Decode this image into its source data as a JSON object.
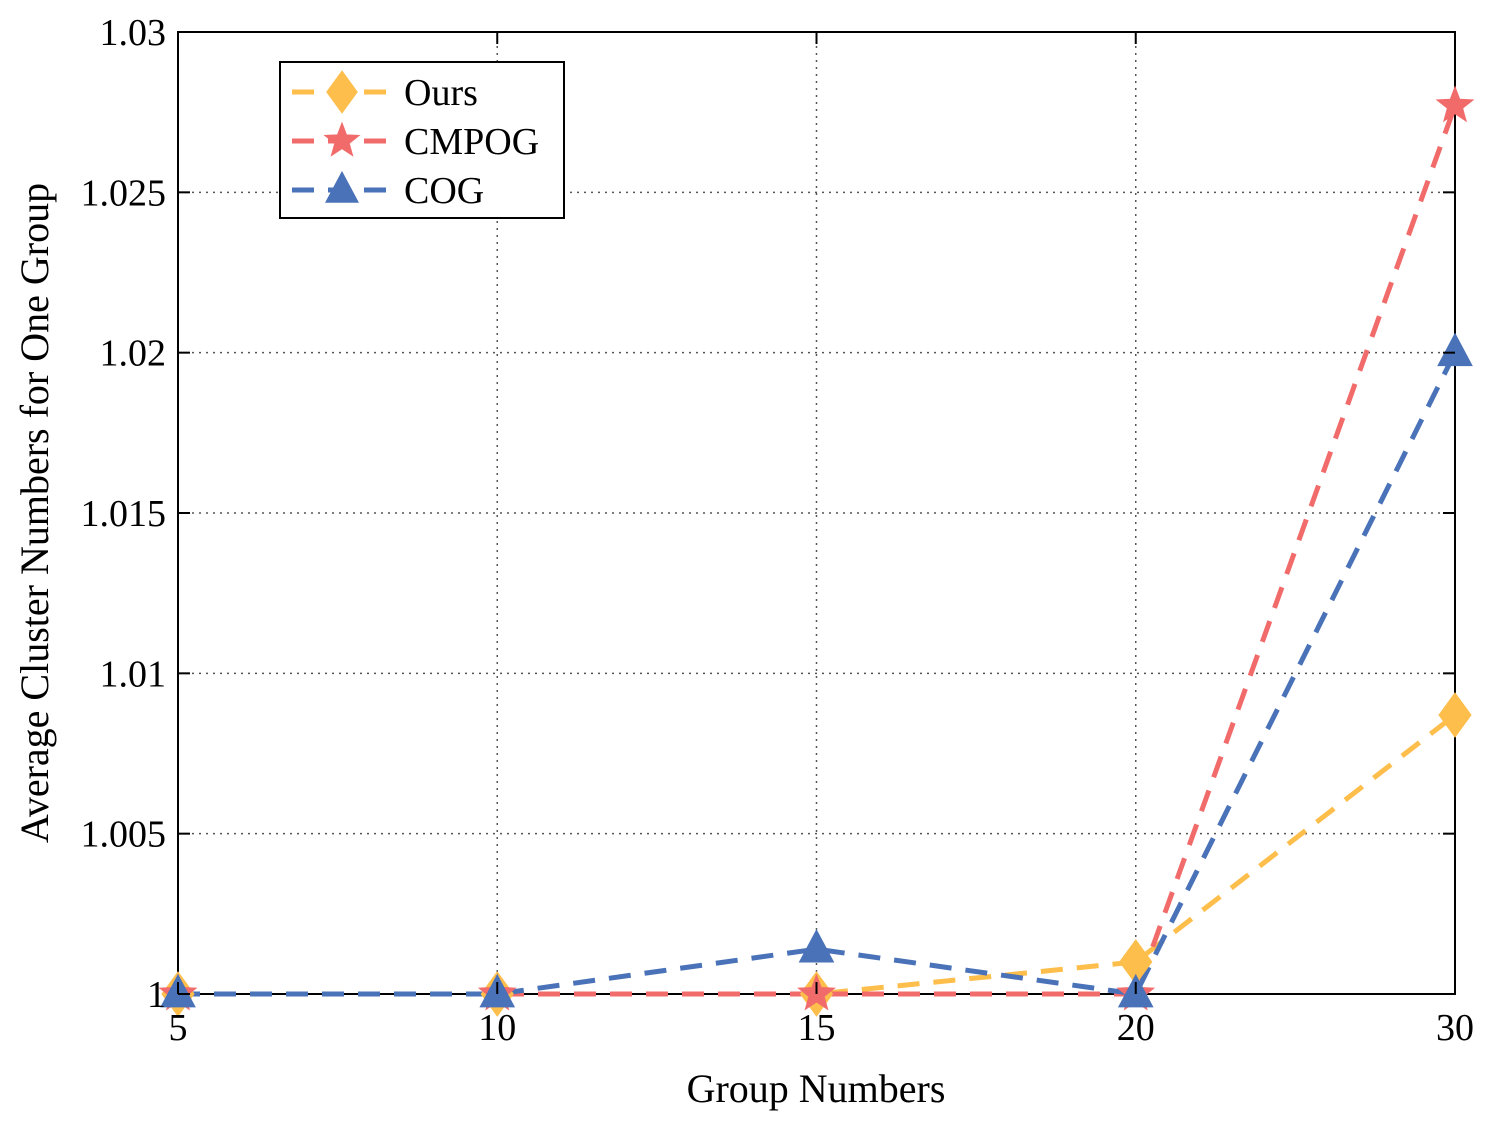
{
  "chart_data": {
    "type": "line",
    "title": "",
    "xlabel": "Group Numbers",
    "ylabel": "Average Cluster Numbers for One Group",
    "categories": [
      "5",
      "10",
      "15",
      "20",
      "30"
    ],
    "ylim": [
      1,
      1.03
    ],
    "yticks": [
      1,
      1.005,
      1.01,
      1.015,
      1.02,
      1.025,
      1.03
    ],
    "ytick_labels": [
      "1",
      "1.005",
      "1.01",
      "1.015",
      "1.02",
      "1.025",
      "1.03"
    ],
    "grid": true,
    "legend_position": "top-left",
    "series": [
      {
        "name": "Ours",
        "marker": "diamond",
        "line_style": "dashed",
        "color": "#FDBE4B",
        "values": [
          1.0,
          1.0,
          1.0,
          1.001,
          1.0087
        ]
      },
      {
        "name": "CMPOG",
        "marker": "star",
        "line_style": "dashed",
        "color": "#F26B6B",
        "values": [
          1.0,
          1.0,
          1.0,
          1.0,
          1.0277
        ]
      },
      {
        "name": "COG",
        "marker": "triangle",
        "line_style": "dashed",
        "color": "#4A72B8",
        "values": [
          1.0,
          1.0,
          1.0014,
          1.0,
          1.02
        ]
      }
    ]
  }
}
